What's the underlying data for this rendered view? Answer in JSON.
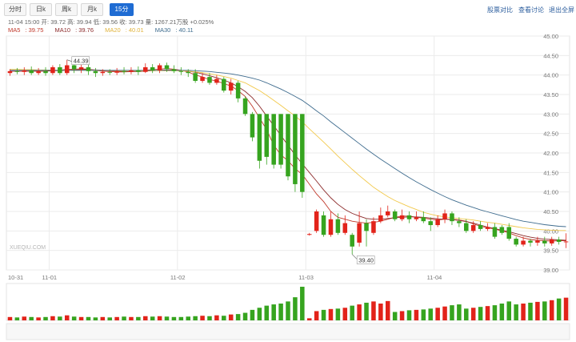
{
  "toolbar": {
    "tabs": [
      {
        "label": "分时",
        "active": false
      },
      {
        "label": "日k",
        "active": false
      },
      {
        "label": "周k",
        "active": false
      },
      {
        "label": "月k",
        "active": false
      },
      {
        "label": "15分",
        "active": true
      }
    ],
    "links": [
      "股票对比",
      "查看讨论",
      "退出全屏"
    ]
  },
  "info_line": "11-04 15:00 开: 39.72 高: 39.94 低: 39.56 收: 39.73 量: 1267.21万股 +0.025%",
  "ma": [
    {
      "label": "MA5",
      "value": "39.75",
      "color": "#c0392b"
    },
    {
      "label": "MA10",
      "value": "39.76",
      "color": "#8c2b2b"
    },
    {
      "label": "MA20",
      "value": "40.01",
      "color": "#f2c94c"
    },
    {
      "label": "MA30",
      "value": "40.11",
      "color": "#3f6c8e"
    }
  ],
  "watermark": "XUEQIU.COM",
  "annotations": {
    "high": "44.39",
    "low": "39.40"
  },
  "colors": {
    "up": "#e2231a",
    "down": "#36a41f",
    "grid": "#ebebeb"
  },
  "chart_data": {
    "type": "candlestick",
    "interval": "15分",
    "ylim": [
      39.0,
      45.0
    ],
    "yticks": [
      "45.00",
      "44.50",
      "44.00",
      "43.50",
      "43.00",
      "42.50",
      "42.00",
      "41.50",
      "41.00",
      "40.50",
      "40.00",
      "39.50",
      "39.00"
    ],
    "x_labels": [
      "10-31",
      "11-01",
      "11-02",
      "11-03",
      "11-04"
    ],
    "x_label_index": [
      0,
      6,
      24,
      42,
      60
    ],
    "candles": [
      [
        44.05,
        44.1,
        44.15,
        43.98
      ],
      [
        44.1,
        44.08,
        44.18,
        44.02
      ],
      [
        44.08,
        44.12,
        44.2,
        44.0
      ],
      [
        44.12,
        44.05,
        44.22,
        44.0
      ],
      [
        44.05,
        44.1,
        44.18,
        44.0
      ],
      [
        44.1,
        44.05,
        44.2,
        43.98
      ],
      [
        44.05,
        44.2,
        44.25,
        44.0
      ],
      [
        44.2,
        44.05,
        44.28,
        44.0
      ],
      [
        44.05,
        44.25,
        44.39,
        44.0
      ],
      [
        44.25,
        44.15,
        44.35,
        44.05
      ],
      [
        44.15,
        44.2,
        44.3,
        44.05
      ],
      [
        44.2,
        44.1,
        44.28,
        44.0
      ],
      [
        44.1,
        44.05,
        44.18,
        43.95
      ],
      [
        44.05,
        44.08,
        44.15,
        43.98
      ],
      [
        44.08,
        44.06,
        44.15,
        44.0
      ],
      [
        44.06,
        44.1,
        44.18,
        44.0
      ],
      [
        44.1,
        44.08,
        44.2,
        44.02
      ],
      [
        44.08,
        44.12,
        44.2,
        44.02
      ],
      [
        44.12,
        44.08,
        44.22,
        44.0
      ],
      [
        44.08,
        44.2,
        44.3,
        44.05
      ],
      [
        44.2,
        44.12,
        44.28,
        44.05
      ],
      [
        44.12,
        44.25,
        44.3,
        44.05
      ],
      [
        44.25,
        44.15,
        44.32,
        44.08
      ],
      [
        44.15,
        44.1,
        44.25,
        44.05
      ],
      [
        44.1,
        44.08,
        44.2,
        44.0
      ],
      [
        44.08,
        44.05,
        44.15,
        43.95
      ],
      [
        44.05,
        43.85,
        44.15,
        43.8
      ],
      [
        43.85,
        43.95,
        44.05,
        43.8
      ],
      [
        43.95,
        43.8,
        44.05,
        43.75
      ],
      [
        43.8,
        43.9,
        44.0,
        43.75
      ],
      [
        43.9,
        43.6,
        43.95,
        43.55
      ],
      [
        43.6,
        43.8,
        43.9,
        43.5
      ],
      [
        43.8,
        43.4,
        43.85,
        43.3
      ],
      [
        43.4,
        43.0,
        43.45,
        42.95
      ],
      [
        43.0,
        42.4,
        43.05,
        42.3
      ],
      [
        43.0,
        41.8,
        43.0,
        41.6
      ],
      [
        43.0,
        41.9,
        43.0,
        41.7
      ],
      [
        43.0,
        41.7,
        43.0,
        41.6
      ],
      [
        43.0,
        41.7,
        43.0,
        41.6
      ],
      [
        43.0,
        41.4,
        43.0,
        41.3
      ],
      [
        43.0,
        41.2,
        43.0,
        41.0
      ],
      [
        43.0,
        41.0,
        43.0,
        40.85
      ],
      [
        39.9,
        39.92,
        39.95,
        39.88
      ],
      [
        40.0,
        40.5,
        40.55,
        39.95
      ],
      [
        40.4,
        39.9,
        40.5,
        39.85
      ],
      [
        39.9,
        40.3,
        40.5,
        39.85
      ],
      [
        40.3,
        39.95,
        40.45,
        39.9
      ],
      [
        39.95,
        40.2,
        40.4,
        39.9
      ],
      [
        39.9,
        39.6,
        39.95,
        39.4
      ],
      [
        39.7,
        40.2,
        40.5,
        39.6
      ],
      [
        40.2,
        40.0,
        40.3,
        39.6
      ],
      [
        39.95,
        40.25,
        40.35,
        39.9
      ],
      [
        40.25,
        40.4,
        40.6,
        40.2
      ],
      [
        40.4,
        40.5,
        40.65,
        40.35
      ],
      [
        40.5,
        40.3,
        40.55,
        40.25
      ],
      [
        40.3,
        40.4,
        40.55,
        40.25
      ],
      [
        40.4,
        40.3,
        40.5,
        40.2
      ],
      [
        40.3,
        40.35,
        40.5,
        40.25
      ],
      [
        40.35,
        40.25,
        40.5,
        40.2
      ],
      [
        40.25,
        40.15,
        40.35,
        40.0
      ],
      [
        40.15,
        40.3,
        40.4,
        40.1
      ],
      [
        40.3,
        40.45,
        40.55,
        40.2
      ],
      [
        40.45,
        40.25,
        40.5,
        40.15
      ],
      [
        40.25,
        40.2,
        40.35,
        40.1
      ],
      [
        40.2,
        40.0,
        40.3,
        39.95
      ],
      [
        40.0,
        40.15,
        40.25,
        39.95
      ],
      [
        40.15,
        40.05,
        40.25,
        40.0
      ],
      [
        40.05,
        40.1,
        40.2,
        40.0
      ],
      [
        40.1,
        39.85,
        40.2,
        39.8
      ],
      [
        40.1,
        39.95,
        40.15,
        39.9
      ],
      [
        40.1,
        39.8,
        40.2,
        39.75
      ],
      [
        39.8,
        39.65,
        39.85,
        39.6
      ],
      [
        39.65,
        39.75,
        39.85,
        39.6
      ],
      [
        39.75,
        39.7,
        39.8,
        39.6
      ],
      [
        39.7,
        39.75,
        39.85,
        39.62
      ],
      [
        39.75,
        39.68,
        39.85,
        39.6
      ],
      [
        39.68,
        39.78,
        39.85,
        39.62
      ],
      [
        39.78,
        39.72,
        39.85,
        39.65
      ],
      [
        39.72,
        39.73,
        39.94,
        39.56
      ]
    ],
    "volume": [
      8,
      7,
      9,
      8,
      7,
      8,
      10,
      9,
      12,
      9,
      8,
      8,
      7,
      8,
      7,
      8,
      9,
      8,
      8,
      10,
      9,
      10,
      9,
      8,
      8,
      9,
      10,
      11,
      10,
      12,
      11,
      14,
      15,
      18,
      25,
      30,
      35,
      38,
      40,
      45,
      55,
      80,
      5,
      22,
      25,
      27,
      28,
      30,
      35,
      38,
      42,
      45,
      40,
      46,
      20,
      22,
      24,
      25,
      26,
      28,
      30,
      33,
      36,
      38,
      28,
      30,
      32,
      34,
      36,
      40,
      45,
      38,
      40,
      42,
      44,
      45,
      48,
      52,
      54
    ],
    "ma_lines": {
      "MA5": [
        44.1,
        44.1,
        44.1,
        44.1,
        44.1,
        44.1,
        44.12,
        44.12,
        44.15,
        44.15,
        44.16,
        44.15,
        44.12,
        44.1,
        44.09,
        44.08,
        44.08,
        44.09,
        44.1,
        44.12,
        44.14,
        44.15,
        44.17,
        44.15,
        44.12,
        44.08,
        44.0,
        43.95,
        43.88,
        43.85,
        43.78,
        43.72,
        43.6,
        43.45,
        43.2,
        42.9,
        42.6,
        42.2,
        41.95,
        41.8,
        41.6,
        41.45,
        41.2,
        40.95,
        40.75,
        40.5,
        40.35,
        40.3,
        40.25,
        40.22,
        40.2,
        40.22,
        40.25,
        40.3,
        40.35,
        40.38,
        40.38,
        40.35,
        40.33,
        40.3,
        40.28,
        40.3,
        40.3,
        40.28,
        40.25,
        40.18,
        40.12,
        40.08,
        40.05,
        40.0,
        39.95,
        39.88,
        39.82,
        39.78,
        39.76,
        39.75,
        39.74,
        39.75,
        39.75
      ],
      "MA10": [
        44.1,
        44.1,
        44.1,
        44.1,
        44.1,
        44.1,
        44.11,
        44.11,
        44.12,
        44.13,
        44.14,
        44.14,
        44.13,
        44.12,
        44.11,
        44.1,
        44.09,
        44.09,
        44.09,
        44.1,
        44.11,
        44.12,
        44.13,
        44.13,
        44.12,
        44.1,
        44.07,
        44.03,
        43.98,
        43.93,
        43.87,
        43.8,
        43.7,
        43.58,
        43.42,
        43.2,
        42.95,
        42.7,
        42.45,
        42.2,
        41.95,
        41.72,
        41.5,
        41.28,
        41.05,
        40.85,
        40.68,
        40.55,
        40.45,
        40.38,
        40.32,
        40.3,
        40.3,
        40.32,
        40.34,
        40.35,
        40.36,
        40.36,
        40.35,
        40.33,
        40.31,
        40.3,
        40.29,
        40.27,
        40.24,
        40.2,
        40.15,
        40.1,
        40.06,
        40.02,
        39.98,
        39.93,
        39.88,
        39.84,
        39.81,
        39.79,
        39.78,
        39.77,
        39.76
      ],
      "MA20": [
        44.15,
        44.15,
        44.14,
        44.14,
        44.13,
        44.13,
        44.12,
        44.12,
        44.12,
        44.12,
        44.12,
        44.12,
        44.12,
        44.12,
        44.12,
        44.11,
        44.11,
        44.11,
        44.11,
        44.11,
        44.11,
        44.11,
        44.11,
        44.11,
        44.11,
        44.1,
        44.08,
        44.06,
        44.03,
        44.0,
        43.96,
        43.92,
        43.86,
        43.8,
        43.7,
        43.6,
        43.48,
        43.35,
        43.22,
        43.08,
        42.95,
        42.8,
        42.62,
        42.45,
        42.28,
        42.1,
        41.92,
        41.75,
        41.58,
        41.42,
        41.27,
        41.12,
        41.0,
        40.88,
        40.78,
        40.7,
        40.62,
        40.55,
        40.48,
        40.43,
        40.39,
        40.36,
        40.34,
        40.32,
        40.3,
        40.28,
        40.25,
        40.22,
        40.2,
        40.17,
        40.14,
        40.11,
        40.08,
        40.06,
        40.04,
        40.03,
        40.02,
        40.01,
        40.01
      ],
      "MA30": [
        44.12,
        44.12,
        44.12,
        44.12,
        44.12,
        44.12,
        44.12,
        44.12,
        44.12,
        44.12,
        44.12,
        44.12,
        44.12,
        44.12,
        44.12,
        44.12,
        44.12,
        44.12,
        44.12,
        44.12,
        44.12,
        44.12,
        44.12,
        44.12,
        44.12,
        44.12,
        44.11,
        44.1,
        44.09,
        44.07,
        44.05,
        44.03,
        44.0,
        43.96,
        43.92,
        43.87,
        43.8,
        43.72,
        43.64,
        43.55,
        43.45,
        43.35,
        43.22,
        43.08,
        42.95,
        42.8,
        42.66,
        42.52,
        42.38,
        42.24,
        42.1,
        41.97,
        41.84,
        41.72,
        41.6,
        41.48,
        41.37,
        41.26,
        41.16,
        41.06,
        40.97,
        40.88,
        40.8,
        40.73,
        40.66,
        40.6,
        40.54,
        40.49,
        40.44,
        40.39,
        40.34,
        40.29,
        40.25,
        40.22,
        40.19,
        40.16,
        40.14,
        40.12,
        40.11
      ]
    }
  }
}
